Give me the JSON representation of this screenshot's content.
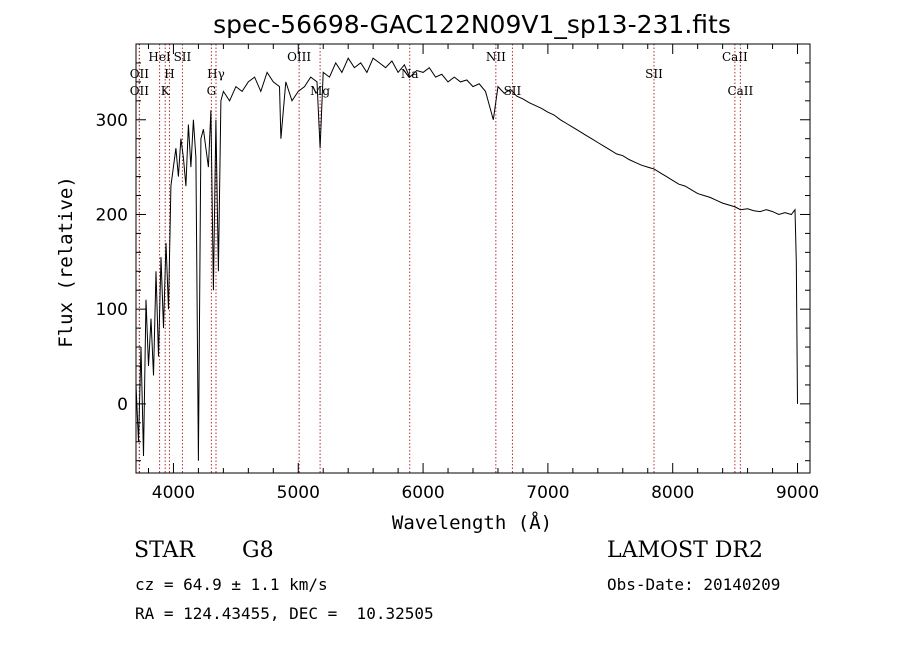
{
  "chart_data": {
    "type": "line",
    "title": "spec-56698-GAC122N09V1_sp13-231.fits",
    "xlabel": "Wavelength (Å)",
    "ylabel": "Flux (relative)",
    "xlim": [
      3700,
      9100
    ],
    "ylim": [
      -73,
      380
    ],
    "x_ticks": [
      4000,
      5000,
      6000,
      7000,
      8000,
      9000
    ],
    "y_ticks": [
      0,
      100,
      200,
      300
    ],
    "x_tick_labels": [
      "4000",
      "5000",
      "6000",
      "7000",
      "8000",
      "9000"
    ],
    "y_tick_labels": [
      "0",
      "100",
      "200",
      "300"
    ],
    "grid": false,
    "series": [
      {
        "color": "#000000",
        "x": [
          3700,
          3720,
          3740,
          3760,
          3780,
          3800,
          3820,
          3840,
          3860,
          3880,
          3900,
          3920,
          3940,
          3960,
          3980,
          4000,
          4020,
          4040,
          4060,
          4080,
          4100,
          4120,
          4140,
          4160,
          4180,
          4200,
          4220,
          4240,
          4260,
          4280,
          4300,
          4320,
          4340,
          4360,
          4380,
          4400,
          4450,
          4500,
          4550,
          4600,
          4650,
          4700,
          4750,
          4800,
          4850,
          4861,
          4900,
          4950,
          5000,
          5050,
          5100,
          5150,
          5175,
          5200,
          5250,
          5300,
          5350,
          5400,
          5450,
          5500,
          5550,
          5600,
          5650,
          5700,
          5750,
          5800,
          5850,
          5893,
          5950,
          6000,
          6050,
          6100,
          6150,
          6200,
          6250,
          6300,
          6350,
          6400,
          6450,
          6500,
          6563,
          6600,
          6650,
          6700,
          6750,
          6800,
          6850,
          6900,
          6950,
          7000,
          7050,
          7100,
          7150,
          7200,
          7250,
          7300,
          7350,
          7400,
          7450,
          7500,
          7550,
          7600,
          7650,
          7700,
          7750,
          7800,
          7850,
          7900,
          7950,
          8000,
          8050,
          8100,
          8150,
          8200,
          8250,
          8300,
          8350,
          8400,
          8450,
          8500,
          8542,
          8600,
          8650,
          8700,
          8750,
          8800,
          8850,
          8900,
          8950,
          8980,
          8990,
          9000
        ],
        "y": [
          20,
          -40,
          60,
          -55,
          110,
          40,
          90,
          30,
          140,
          50,
          155,
          80,
          170,
          100,
          230,
          250,
          270,
          240,
          280,
          260,
          230,
          295,
          250,
          300,
          260,
          -60,
          280,
          290,
          270,
          250,
          310,
          120,
          300,
          140,
          320,
          330,
          320,
          335,
          330,
          340,
          345,
          330,
          350,
          340,
          335,
          280,
          340,
          320,
          330,
          335,
          345,
          340,
          270,
          350,
          345,
          360,
          350,
          365,
          355,
          360,
          350,
          365,
          360,
          355,
          362,
          350,
          358,
          345,
          352,
          350,
          355,
          345,
          348,
          340,
          345,
          340,
          342,
          335,
          338,
          330,
          300,
          335,
          328,
          332,
          325,
          322,
          318,
          315,
          312,
          308,
          305,
          300,
          296,
          292,
          288,
          284,
          280,
          276,
          272,
          268,
          264,
          262,
          258,
          255,
          252,
          250,
          248,
          244,
          240,
          236,
          232,
          230,
          226,
          222,
          220,
          218,
          215,
          212,
          210,
          208,
          205,
          206,
          204,
          203,
          205,
          203,
          200,
          202,
          200,
          205,
          150,
          0
        ]
      }
    ],
    "spectral_lines": [
      {
        "label": "OII",
        "wavelength": 3727,
        "row": "upper"
      },
      {
        "label": "OII",
        "wavelength": 3727,
        "row": "lower"
      },
      {
        "label": "HeI",
        "wavelength": 3889,
        "row": "top"
      },
      {
        "label": "SII",
        "wavelength": 4072,
        "row": "top"
      },
      {
        "label": "H",
        "wavelength": 3968,
        "row": "upper"
      },
      {
        "label": "K",
        "wavelength": 3934,
        "row": "lower"
      },
      {
        "label": "Hγ",
        "wavelength": 4341,
        "row": "upper"
      },
      {
        "label": "G",
        "wavelength": 4304,
        "row": "lower"
      },
      {
        "label": "OIII",
        "wavelength": 5007,
        "row": "top"
      },
      {
        "label": "Mg",
        "wavelength": 5175,
        "row": "lower"
      },
      {
        "label": "Na",
        "wavelength": 5893,
        "row": "upper"
      },
      {
        "label": "NII",
        "wavelength": 6583,
        "row": "top"
      },
      {
        "label": "SII",
        "wavelength": 6716,
        "row": "lower"
      },
      {
        "label": "SII",
        "wavelength": 7850,
        "row": "upper"
      },
      {
        "label": "CaII",
        "wavelength": 8498,
        "row": "top"
      },
      {
        "label": "CaII",
        "wavelength": 8542,
        "row": "lower"
      }
    ],
    "line_color": "#b03030"
  },
  "footer": {
    "object_type": "STAR",
    "subclass": "G8",
    "survey": "LAMOST DR2",
    "redshift": "cz = 64.9 ± 1.1 km/s",
    "obs_date": "Obs-Date: 20140209",
    "coords": "RA = 124.43455, DEC =  10.32505"
  }
}
